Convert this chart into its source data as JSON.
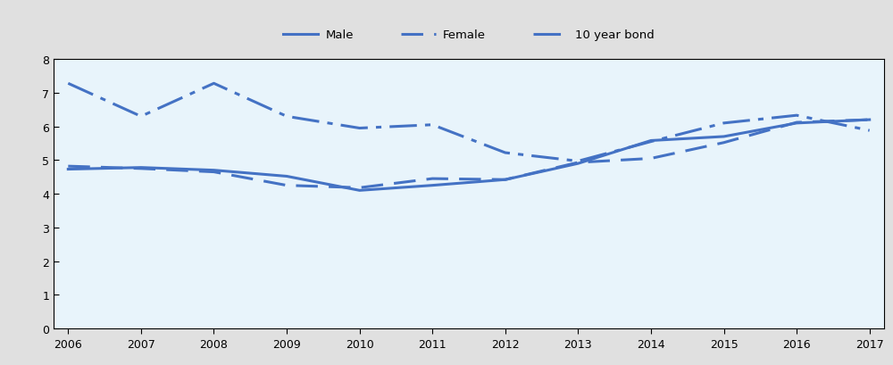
{
  "years": [
    2006,
    2007,
    2008,
    2009,
    2010,
    2011,
    2012,
    2013,
    2014,
    2015,
    2016,
    2017
  ],
  "male": [
    4.73,
    4.78,
    4.7,
    4.52,
    4.1,
    4.25,
    4.42,
    4.9,
    5.58,
    5.7,
    6.1,
    6.2
  ],
  "female": [
    4.82,
    4.75,
    4.65,
    4.25,
    4.18,
    4.45,
    4.42,
    4.93,
    5.05,
    5.52,
    6.12,
    6.2
  ],
  "bond": [
    7.28,
    6.3,
    7.28,
    6.3,
    5.95,
    6.05,
    5.22,
    4.97,
    5.55,
    6.1,
    6.33,
    5.88
  ],
  "color": "#4472C4",
  "xlim": [
    2006,
    2017
  ],
  "ylim": [
    0,
    8
  ],
  "yticks": [
    0,
    1,
    2,
    3,
    4,
    5,
    6,
    7,
    8
  ],
  "xtick_labels": [
    "2006",
    "2007",
    "2008",
    "2009",
    "2010",
    "2011",
    "2012",
    "2013",
    "2014",
    "2015",
    "2016",
    "2017"
  ],
  "legend_labels": [
    "Male",
    "Female",
    "10 year bond"
  ],
  "plot_bg_color": "#E8F4FB",
  "legend_area_bg": "#E0E0E0",
  "fig_bg": "#E0E0E0"
}
